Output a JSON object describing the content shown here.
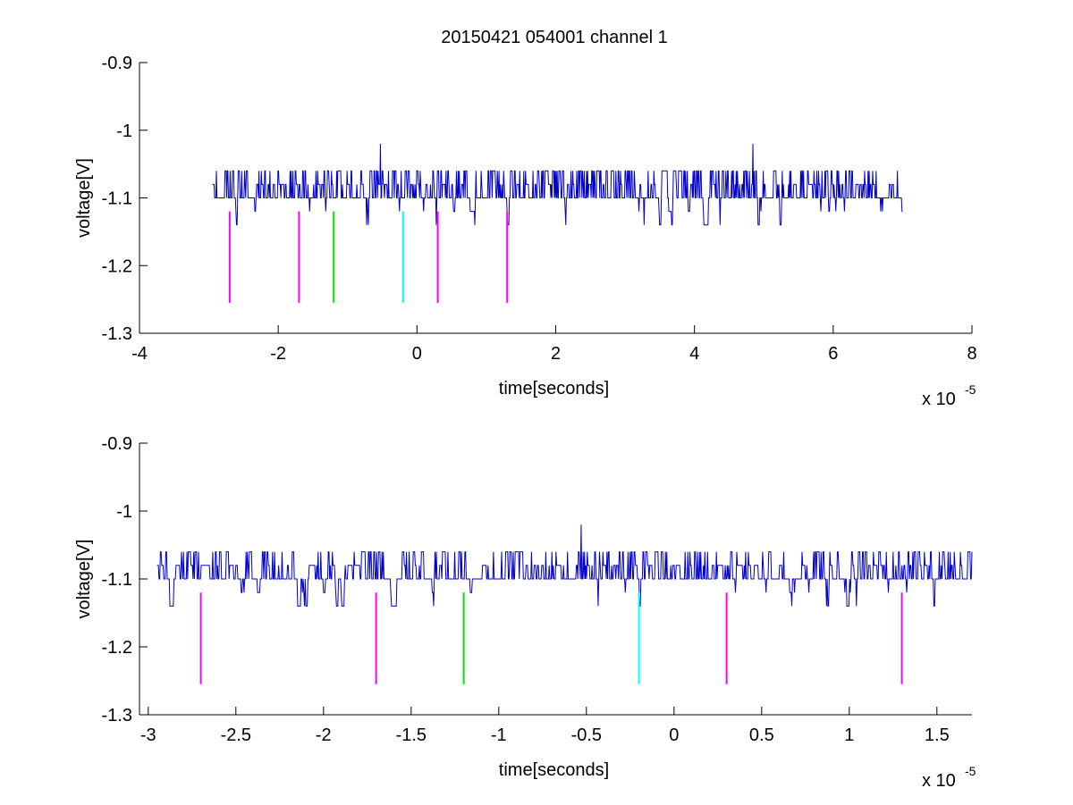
{
  "figure": {
    "title": "20150421 054001 channel 1"
  },
  "colors": {
    "trace": "#0000c8",
    "magenta": "#ff00ff",
    "green": "#00e000",
    "cyan": "#00ffff",
    "axis": "#000000"
  },
  "chart_data": [
    {
      "type": "line",
      "xlabel": "time[seconds]",
      "ylabel": "voltage[V]",
      "x_exponent_label": "x 10",
      "x_exponent": "-5",
      "xlim": [
        -4e-05,
        8e-05
      ],
      "ylim": [
        -1.3,
        -0.9
      ],
      "xticks": [
        -4e-05,
        -2e-05,
        0,
        2e-05,
        4e-05,
        6e-05,
        8e-05
      ],
      "xtick_labels": [
        "-4",
        "-2",
        "0",
        "2",
        "4",
        "6",
        "8"
      ],
      "yticks": [
        -0.9,
        -1.0,
        -1.1,
        -1.2,
        -1.3
      ],
      "ytick_labels": [
        "-0.9",
        "-1",
        "-1.1",
        "-1.2",
        "-1.3"
      ],
      "grid": false,
      "series": [
        {
          "color": "trace",
          "x_range": [
            -2.95e-05,
            7e-05
          ],
          "levels": [
            -1.06,
            -1.08,
            -1.1,
            -1.12,
            -1.14
          ],
          "baseline": -1.1,
          "spikes": [
            {
              "x": -5.3e-06,
              "y": -1.02
            },
            {
              "x": 4.84e-05,
              "y": -1.02
            }
          ]
        }
      ],
      "markers": [
        {
          "x": -2.7e-05,
          "y_top": -1.12,
          "y_bottom": -1.255,
          "color": "magenta"
        },
        {
          "x": -1.7e-05,
          "y_top": -1.12,
          "y_bottom": -1.255,
          "color": "magenta"
        },
        {
          "x": -1.2e-05,
          "y_top": -1.12,
          "y_bottom": -1.255,
          "color": "green"
        },
        {
          "x": -2e-06,
          "y_top": -1.12,
          "y_bottom": -1.255,
          "color": "cyan"
        },
        {
          "x": 3e-06,
          "y_top": -1.12,
          "y_bottom": -1.255,
          "color": "magenta"
        },
        {
          "x": 1.3e-05,
          "y_top": -1.12,
          "y_bottom": -1.255,
          "color": "magenta"
        }
      ]
    },
    {
      "type": "line",
      "xlabel": "time[seconds]",
      "ylabel": "voltage[V]",
      "x_exponent_label": "x 10",
      "x_exponent": "-5",
      "xlim": [
        -3.05e-05,
        1.7e-05
      ],
      "ylim": [
        -1.3,
        -0.9
      ],
      "xticks": [
        -3e-05,
        -2.5e-05,
        -2e-05,
        -1.5e-05,
        -1e-05,
        -5e-06,
        0,
        5e-06,
        1e-05,
        1.5e-05
      ],
      "xtick_labels": [
        "-3",
        "-2.5",
        "-2",
        "-1.5",
        "-1",
        "-0.5",
        "0",
        "0.5",
        "1",
        "1.5"
      ],
      "yticks": [
        -0.9,
        -1.0,
        -1.1,
        -1.2,
        -1.3
      ],
      "ytick_labels": [
        "-0.9",
        "-1",
        "-1.1",
        "-1.2",
        "-1.3"
      ],
      "grid": false,
      "series": [
        {
          "color": "trace",
          "x_range": [
            -2.95e-05,
            1.7e-05
          ],
          "levels": [
            -1.06,
            -1.08,
            -1.1,
            -1.12,
            -1.14
          ],
          "baseline": -1.1,
          "spikes": [
            {
              "x": -5.3e-06,
              "y": -1.02
            }
          ]
        }
      ],
      "markers": [
        {
          "x": -2.7e-05,
          "y_top": -1.12,
          "y_bottom": -1.255,
          "color": "magenta"
        },
        {
          "x": -1.7e-05,
          "y_top": -1.12,
          "y_bottom": -1.255,
          "color": "magenta"
        },
        {
          "x": -1.2e-05,
          "y_top": -1.12,
          "y_bottom": -1.255,
          "color": "green"
        },
        {
          "x": -2e-06,
          "y_top": -1.12,
          "y_bottom": -1.255,
          "color": "cyan"
        },
        {
          "x": 3e-06,
          "y_top": -1.12,
          "y_bottom": -1.255,
          "color": "magenta"
        },
        {
          "x": 1.3e-05,
          "y_top": -1.12,
          "y_bottom": -1.255,
          "color": "magenta"
        }
      ]
    }
  ]
}
